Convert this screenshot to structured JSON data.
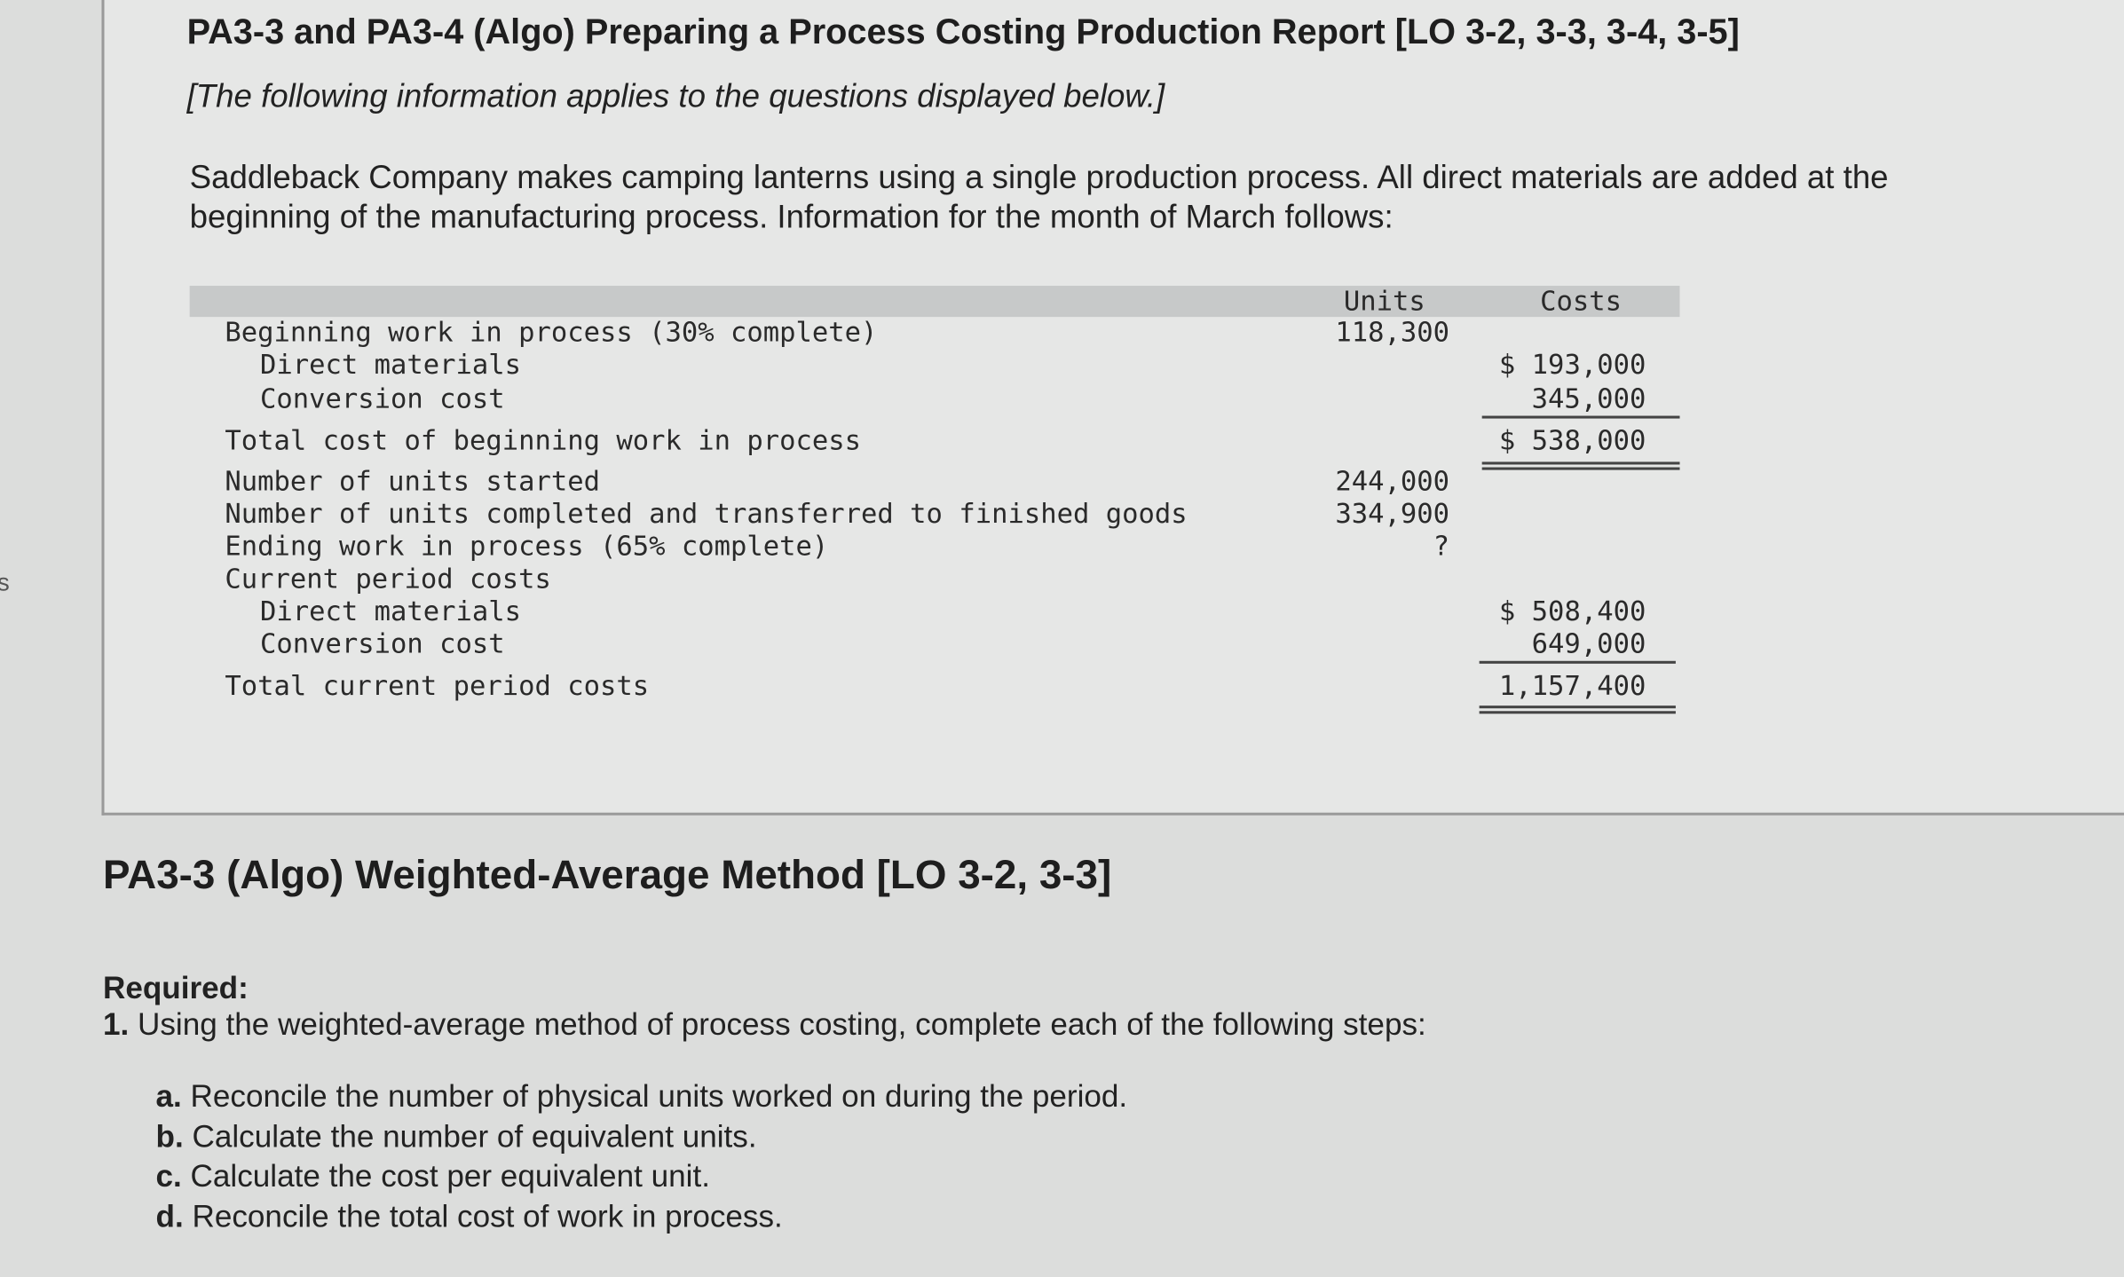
{
  "side_text": "s",
  "header": {
    "title": "PA3-3 and PA3-4 (Algo) Preparing a Process Costing Production Report [LO 3-2, 3-3, 3-4, 3-5]",
    "note": "[The following information applies to the questions displayed below.]",
    "paragraph": [
      "Saddleback Company makes camping lanterns using a single production process. All direct materials are added at the",
      "beginning of the manufacturing process. Information for the month of March follows:"
    ]
  },
  "table": {
    "headers": [
      "Units",
      "Costs"
    ],
    "rows": [
      [
        "Beginning work in process (30% complete)",
        "118,300",
        ""
      ],
      [
        "Direct materials",
        "",
        "$ 193,000"
      ],
      [
        "Conversion cost",
        "",
        "345,000"
      ],
      [
        "Total cost of beginning work in process",
        "",
        "$ 538,000"
      ],
      [
        "Number of units started",
        "244,000",
        ""
      ],
      [
        "Number of units completed and transferred to finished goods",
        "334,900",
        ""
      ],
      [
        "Ending work in process (65% complete)",
        "?",
        ""
      ],
      [
        "Current period costs",
        "",
        ""
      ],
      [
        "Direct materials",
        "",
        "$ 508,400"
      ],
      [
        "Conversion cost",
        "",
        "649,000"
      ],
      [
        "Total current period costs",
        "",
        "1,157,400"
      ]
    ]
  },
  "section": {
    "title": "PA3-3 (Algo) Weighted-Average Method [LO 3-2, 3-3]",
    "required_label": "Required:",
    "required_number": "1.",
    "required_text": "Using the weighted-average method of process costing, complete each of the following steps:",
    "steps": [
      {
        "letter": "a.",
        "text": "Reconcile the number of physical units worked on during the period."
      },
      {
        "letter": "b.",
        "text": "Calculate the number of equivalent units."
      },
      {
        "letter": "c.",
        "text": "Calculate the cost per equivalent unit."
      },
      {
        "letter": "d.",
        "text": "Reconcile the total cost of work in process."
      }
    ]
  }
}
